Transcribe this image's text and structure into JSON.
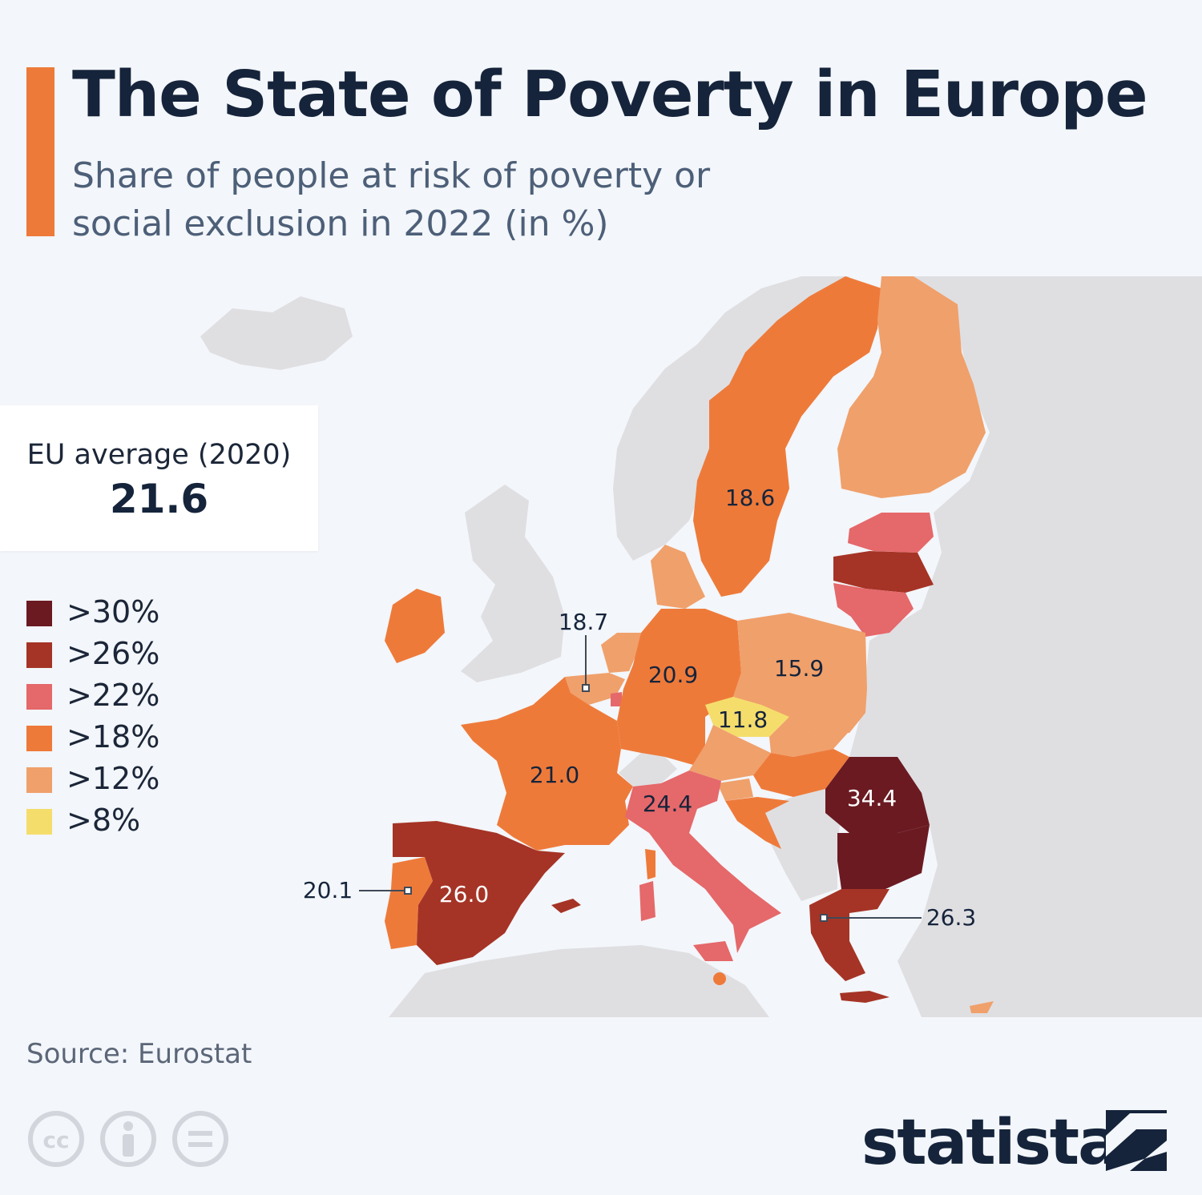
{
  "header": {
    "title": "The State of Poverty in Europe",
    "subtitle": "Share of people at risk of poverty or social exclusion in 2022 (in %)"
  },
  "average": {
    "label": "EU average (2020)",
    "value": "21.6"
  },
  "legend": [
    {
      "label": ">30%",
      "color": "#6b1a22"
    },
    {
      "label": ">26%",
      "color": "#a53426"
    },
    {
      "label": ">22%",
      "color": "#e5686a"
    },
    {
      "label": ">18%",
      "color": "#ee7a3a"
    },
    {
      "label": ">12%",
      "color": "#f0a06b"
    },
    {
      "label": ">8%",
      "color": "#f5dd6c"
    }
  ],
  "regions": {
    "sweden": "18.6",
    "benelux": "18.7",
    "germany": "20.9",
    "poland": "15.9",
    "czechia": "11.8",
    "france": "21.0",
    "italy": "24.4",
    "romania": "34.4",
    "portugal": "20.1",
    "spain": "26.0",
    "greece": "26.3"
  },
  "source": "Source: Eurostat",
  "brand": "statista",
  "colors": {
    "accent": "#ee7a3a",
    "title": "#15243b",
    "land": "#dfdfe2",
    "background": "#f3f6fa"
  }
}
